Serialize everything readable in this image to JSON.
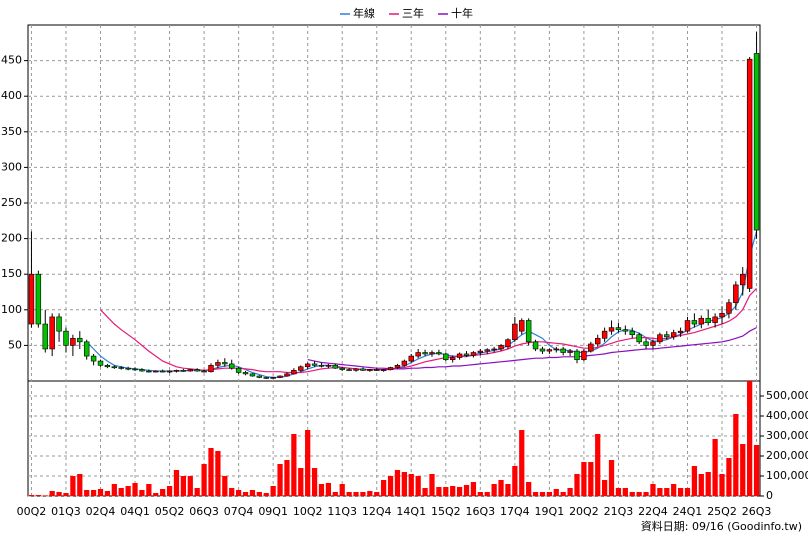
{
  "chart_data": {
    "type": "candlestick",
    "legend": "top",
    "grid": true,
    "up_color": "#ff0000",
    "down_color": "#00c000",
    "footer": "資料日期: 09/16 (Goodinfo.tw)",
    "categories": [
      "00Q2",
      null,
      null,
      null,
      null,
      "01Q3",
      null,
      null,
      null,
      null,
      "02Q4",
      null,
      null,
      null,
      null,
      "04Q1",
      null,
      null,
      null,
      null,
      "05Q2",
      null,
      null,
      null,
      null,
      "06Q3",
      null,
      null,
      null,
      null,
      "07Q4",
      null,
      null,
      null,
      null,
      "09Q1",
      null,
      null,
      null,
      null,
      "10Q2",
      null,
      null,
      null,
      null,
      "11Q3",
      null,
      null,
      null,
      null,
      "12Q4",
      null,
      null,
      null,
      null,
      "14Q1",
      null,
      null,
      null,
      null,
      "15Q2",
      null,
      null,
      null,
      null,
      "16Q3",
      null,
      null,
      null,
      null,
      "17Q4",
      null,
      null,
      null,
      null,
      "19Q1",
      null,
      null,
      null,
      null,
      "20Q2",
      null,
      null,
      null,
      null,
      "21Q3",
      null,
      null,
      null,
      null,
      "22Q4",
      null,
      null,
      null,
      null,
      "24Q1",
      null,
      null,
      null,
      null,
      "25Q2",
      null,
      null,
      null,
      null,
      "26Q3"
    ],
    "open": [
      80,
      150,
      80,
      45,
      90,
      70,
      50,
      60,
      55,
      35,
      28,
      22,
      20,
      19,
      18,
      17,
      16,
      14,
      13,
      14,
      13,
      14,
      15,
      14,
      16,
      14,
      13,
      22,
      26,
      24,
      18,
      12,
      10,
      7,
      5,
      4,
      5,
      7,
      10,
      15,
      20,
      24,
      22,
      21,
      22,
      18,
      16,
      15,
      17,
      15,
      16,
      15,
      16,
      19,
      22,
      28,
      35,
      40,
      38,
      40,
      38,
      30,
      33,
      38,
      36,
      40,
      42,
      44,
      45,
      48,
      58,
      70,
      85,
      55,
      45,
      42,
      44,
      45,
      40,
      42,
      30,
      42,
      52,
      60,
      70,
      75,
      72,
      70,
      65,
      55,
      50,
      55,
      65,
      62,
      68,
      70,
      85,
      80,
      88,
      82,
      90,
      95,
      110,
      135,
      130,
      460
    ],
    "high": [
      210,
      155,
      100,
      95,
      95,
      75,
      65,
      70,
      58,
      38,
      30,
      24,
      22,
      21,
      20,
      19,
      18,
      16,
      15,
      16,
      15,
      16,
      17,
      17,
      18,
      16,
      25,
      30,
      32,
      30,
      20,
      14,
      11,
      8,
      6,
      6,
      8,
      12,
      18,
      22,
      26,
      28,
      26,
      24,
      24,
      20,
      18,
      18,
      19,
      17,
      18,
      17,
      20,
      24,
      30,
      38,
      45,
      44,
      43,
      44,
      40,
      36,
      40,
      42,
      42,
      45,
      46,
      48,
      52,
      60,
      90,
      88,
      88,
      58,
      48,
      46,
      48,
      48,
      45,
      45,
      45,
      55,
      65,
      75,
      85,
      82,
      78,
      75,
      68,
      60,
      58,
      68,
      70,
      72,
      75,
      90,
      95,
      92,
      100,
      95,
      105,
      115,
      140,
      160,
      455,
      490
    ],
    "low": [
      75,
      75,
      40,
      35,
      55,
      40,
      35,
      45,
      30,
      22,
      20,
      18,
      17,
      16,
      15,
      14,
      13,
      12,
      12,
      12,
      11,
      12,
      13,
      13,
      13,
      12,
      12,
      18,
      20,
      16,
      10,
      8,
      6,
      4,
      3,
      3,
      4,
      6,
      9,
      13,
      17,
      20,
      19,
      18,
      17,
      14,
      14,
      13,
      14,
      13,
      14,
      13,
      15,
      17,
      20,
      26,
      32,
      35,
      34,
      36,
      28,
      26,
      30,
      34,
      33,
      36,
      38,
      40,
      42,
      45,
      55,
      65,
      50,
      42,
      38,
      38,
      40,
      36,
      35,
      25,
      28,
      40,
      48,
      55,
      65,
      68,
      65,
      60,
      52,
      45,
      45,
      52,
      58,
      58,
      62,
      68,
      75,
      74,
      78,
      75,
      80,
      88,
      100,
      120,
      125,
      200
    ],
    "close": [
      150,
      80,
      45,
      90,
      70,
      50,
      60,
      55,
      35,
      28,
      22,
      20,
      19,
      18,
      17,
      16,
      14,
      13,
      14,
      13,
      14,
      15,
      14,
      16,
      14,
      13,
      22,
      26,
      24,
      18,
      12,
      10,
      7,
      5,
      4,
      5,
      7,
      10,
      15,
      20,
      24,
      22,
      21,
      22,
      18,
      16,
      15,
      17,
      15,
      16,
      15,
      16,
      19,
      22,
      28,
      35,
      40,
      38,
      40,
      38,
      30,
      33,
      38,
      36,
      40,
      42,
      44,
      45,
      50,
      58,
      80,
      85,
      55,
      45,
      42,
      44,
      45,
      40,
      42,
      30,
      42,
      52,
      60,
      70,
      75,
      72,
      70,
      65,
      55,
      50,
      55,
      65,
      62,
      68,
      70,
      85,
      80,
      88,
      82,
      90,
      95,
      110,
      135,
      150,
      452,
      212
    ],
    "volume": {
      "color": "#ff0000",
      "axis": "y2",
      "values": [
        5000,
        5000,
        3000,
        25000,
        20000,
        15000,
        100000,
        110000,
        30000,
        30000,
        35000,
        25000,
        60000,
        40000,
        50000,
        65000,
        30000,
        60000,
        15000,
        35000,
        50000,
        130000,
        100000,
        100000,
        40000,
        160000,
        240000,
        225000,
        100000,
        40000,
        30000,
        20000,
        30000,
        20000,
        15000,
        50000,
        160000,
        180000,
        310000,
        140000,
        330000,
        140000,
        60000,
        65000,
        20000,
        60000,
        20000,
        20000,
        20000,
        25000,
        20000,
        80000,
        100000,
        130000,
        120000,
        110000,
        100000,
        40000,
        110000,
        45000,
        45000,
        50000,
        45000,
        55000,
        70000,
        20000,
        20000,
        60000,
        80000,
        60000,
        150000,
        330000,
        70000,
        20000,
        20000,
        20000,
        35000,
        20000,
        40000,
        110000,
        170000,
        170000,
        310000,
        80000,
        180000,
        40000,
        40000,
        20000,
        20000,
        20000,
        60000,
        40000,
        40000,
        60000,
        40000,
        40000,
        150000,
        110000,
        120000,
        285000,
        110000,
        190000,
        410000,
        260000,
        575000,
        255000
      ]
    },
    "series": [
      {
        "name": "年線",
        "color": "#2f7fd8",
        "values": [
          null,
          null,
          null,
          null,
          null,
          null,
          null,
          null,
          55,
          45,
          35,
          28,
          22,
          20,
          18,
          17,
          16,
          15,
          14,
          14,
          14,
          14,
          14,
          15,
          15,
          14,
          16,
          19,
          21,
          22,
          20,
          16,
          12,
          9,
          6,
          5,
          5,
          7,
          10,
          13,
          17,
          20,
          22,
          22,
          21,
          19,
          18,
          17,
          16,
          16,
          16,
          16,
          16,
          18,
          21,
          26,
          31,
          35,
          38,
          39,
          37,
          35,
          35,
          34,
          37,
          39,
          41,
          43,
          45,
          50,
          57,
          65,
          70,
          65,
          60,
          50,
          44,
          43,
          43,
          40,
          40,
          42,
          46,
          53,
          62,
          69,
          72,
          71,
          67,
          61,
          56,
          56,
          58,
          62,
          66,
          71,
          76,
          80,
          84,
          86,
          89,
          95,
          105,
          125,
          175,
          210
        ]
      },
      {
        "name": "三年",
        "color": "#e8197a",
        "values": [
          null,
          null,
          null,
          null,
          null,
          null,
          null,
          null,
          null,
          null,
          100,
          90,
          80,
          72,
          65,
          58,
          50,
          42,
          35,
          28,
          24,
          20,
          18,
          17,
          16,
          15,
          16,
          17,
          18,
          18,
          18,
          17,
          16,
          14,
          13,
          13,
          13,
          12,
          12,
          12,
          13,
          15,
          17,
          18,
          19,
          19,
          18,
          17,
          16,
          16,
          16,
          16,
          17,
          18,
          19,
          21,
          24,
          27,
          29,
          31,
          33,
          34,
          35,
          35,
          36,
          37,
          38,
          40,
          42,
          45,
          49,
          52,
          54,
          55,
          55,
          54,
          53,
          52,
          50,
          48,
          46,
          46,
          47,
          50,
          53,
          56,
          58,
          60,
          61,
          61,
          60,
          59,
          60,
          62,
          64,
          66,
          68,
          71,
          74,
          77,
          80,
          84,
          90,
          100,
          120,
          130
        ]
      },
      {
        "name": "十年",
        "color": "#8a10c0",
        "values": [
          null,
          null,
          null,
          null,
          null,
          null,
          null,
          null,
          null,
          null,
          null,
          null,
          null,
          null,
          null,
          null,
          null,
          null,
          null,
          null,
          null,
          null,
          null,
          null,
          null,
          null,
          null,
          null,
          null,
          null,
          null,
          null,
          null,
          null,
          null,
          null,
          null,
          null,
          null,
          null,
          30,
          28,
          26,
          25,
          24,
          23,
          22,
          21,
          20,
          19,
          18,
          18,
          17,
          17,
          17,
          18,
          18,
          19,
          19,
          20,
          20,
          21,
          21,
          22,
          23,
          24,
          25,
          26,
          27,
          28,
          29,
          30,
          31,
          32,
          32,
          33,
          33,
          34,
          34,
          34,
          35,
          36,
          37,
          38,
          40,
          41,
          42,
          43,
          44,
          45,
          45,
          46,
          47,
          48,
          49,
          50,
          51,
          52,
          53,
          54,
          55,
          57,
          60,
          63,
          70,
          75
        ]
      }
    ],
    "ylim": [
      0,
      500
    ],
    "yticks": [
      50,
      100,
      150,
      200,
      250,
      300,
      350,
      400,
      450
    ],
    "y2lim": [
      0,
      580000
    ],
    "y2ticks": [
      0,
      {
        "value": 100000,
        "label": "100,000"
      },
      {
        "value": 200000,
        "label": "200,000"
      },
      {
        "value": 300000,
        "label": "300,000"
      },
      {
        "value": 400000,
        "label": "400,000"
      },
      {
        "value": 500000,
        "label": "500,000"
      }
    ]
  }
}
